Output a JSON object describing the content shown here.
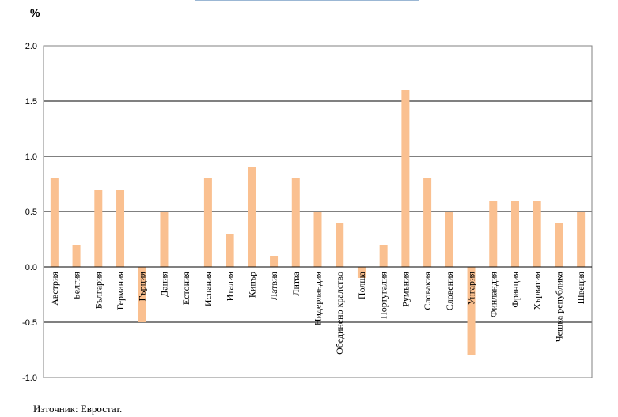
{
  "unit_label": "%",
  "source_note": "Източник: Евростат.",
  "colors": {
    "bar": "#fac090",
    "grid": "#000000",
    "axis": "#808080"
  },
  "chart_data": {
    "type": "bar",
    "categories": [
      "Австрия",
      "Белгия",
      "България",
      "Германия",
      "Гърция",
      "Дания",
      "Естония",
      "Испания",
      "Италия",
      "Кипър",
      "Латвия",
      "Литва",
      "Нидерландия",
      "Обединено кралство",
      "Полша",
      "Португалия",
      "Румъния",
      "Словакия",
      "Словения",
      "Унгария",
      "Финландия",
      "Франция",
      "Хърватия",
      "Чешка република",
      "Швеция"
    ],
    "values": [
      0.8,
      0.2,
      0.7,
      0.7,
      -0.5,
      0.5,
      0.0,
      0.8,
      0.3,
      0.9,
      0.1,
      0.8,
      0.5,
      0.4,
      -0.1,
      0.2,
      1.6,
      0.8,
      0.5,
      -0.8,
      0.6,
      0.6,
      0.6,
      0.4,
      0.5
    ],
    "ylim": [
      -1.0,
      2.0
    ],
    "yticks": [
      "2.0",
      "1.5",
      "1.0",
      "0.5",
      "0.0",
      "-0.5",
      "-1.0"
    ],
    "ytick_values": [
      2.0,
      1.5,
      1.0,
      0.5,
      0.0,
      -0.5,
      -1.0
    ],
    "grid": true
  }
}
